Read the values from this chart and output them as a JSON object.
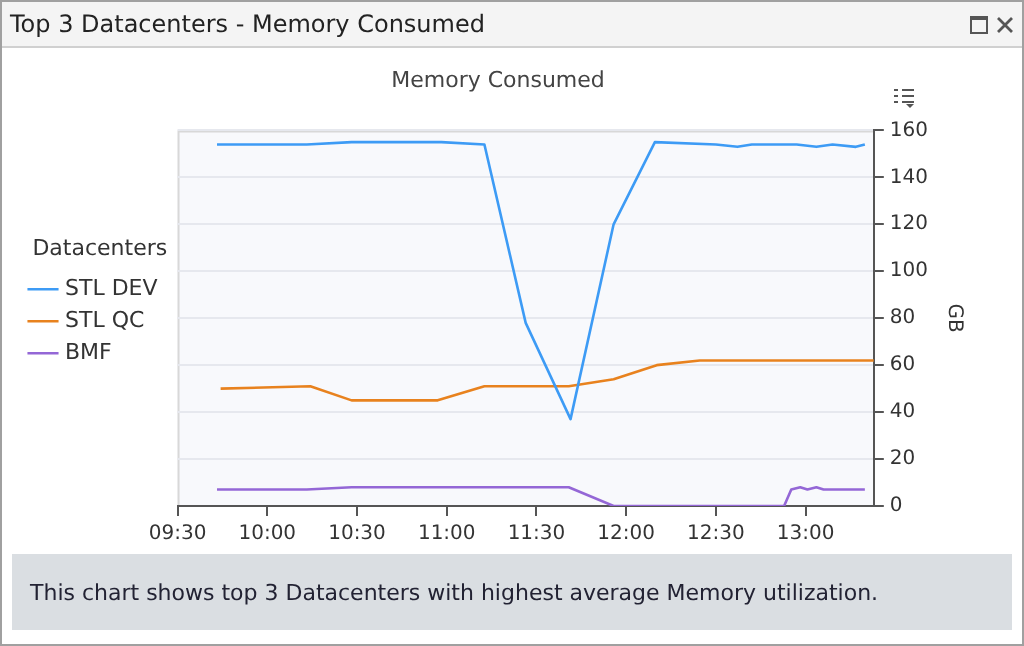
{
  "chart_data": {
    "type": "line",
    "title": "Top 3 Datacenters - Memory Consumed",
    "subtitle": "Memory Consumed",
    "ylabel": "GB",
    "legend_title": "Datacenters",
    "legend": "left",
    "grid": "y",
    "marker": "none",
    "line_style": "solid",
    "annotations": [
      "This chart shows top 3 Datacenters with highest average Memory utilization."
    ],
    "xlim": [
      9.5,
      13.38
    ],
    "xticks": [
      {
        "value": 9.5,
        "label": "09:30"
      },
      {
        "value": 10,
        "label": "10:00"
      },
      {
        "value": 10.5,
        "label": "10:30"
      },
      {
        "value": 11,
        "label": "11:00"
      },
      {
        "value": 11.5,
        "label": "11:30"
      },
      {
        "value": 12,
        "label": "12:00"
      },
      {
        "value": 12.5,
        "label": "12:30"
      },
      {
        "value": 13,
        "label": "13:00"
      }
    ],
    "ylim": [
      0,
      160
    ],
    "yticks": [
      0,
      20,
      40,
      60,
      80,
      100,
      120,
      140,
      160
    ],
    "series": [
      {
        "name": "STL DEV",
        "color": "#3d9bf5",
        "x": [
          9.72,
          10.22,
          10.47,
          10.97,
          11.21,
          11.44,
          11.69,
          11.93,
          12.16,
          12.5,
          12.62,
          12.7,
          12.95,
          13.06,
          13.15,
          13.28,
          13.33
        ],
        "values": [
          154,
          154,
          155,
          155,
          154,
          78,
          37,
          120,
          155,
          154,
          153,
          154,
          154,
          153,
          154,
          153,
          154
        ]
      },
      {
        "name": "STL QC",
        "color": "#e8821e",
        "x": [
          9.74,
          10.24,
          10.47,
          10.95,
          11.21,
          11.68,
          11.93,
          12.17,
          12.41,
          12.67,
          13.38
        ],
        "values": [
          50,
          51,
          45,
          45,
          51,
          51,
          54,
          60,
          62,
          62,
          62
        ]
      },
      {
        "name": "BMF",
        "color": "#9467d6",
        "x": [
          9.72,
          10.22,
          10.47,
          11.68,
          11.93,
          12.88,
          12.92,
          12.97,
          13.01,
          13.06,
          13.1,
          13.33
        ],
        "values": [
          7,
          7,
          8,
          8,
          0,
          0,
          7,
          8,
          7,
          8,
          7,
          7
        ]
      }
    ]
  }
}
